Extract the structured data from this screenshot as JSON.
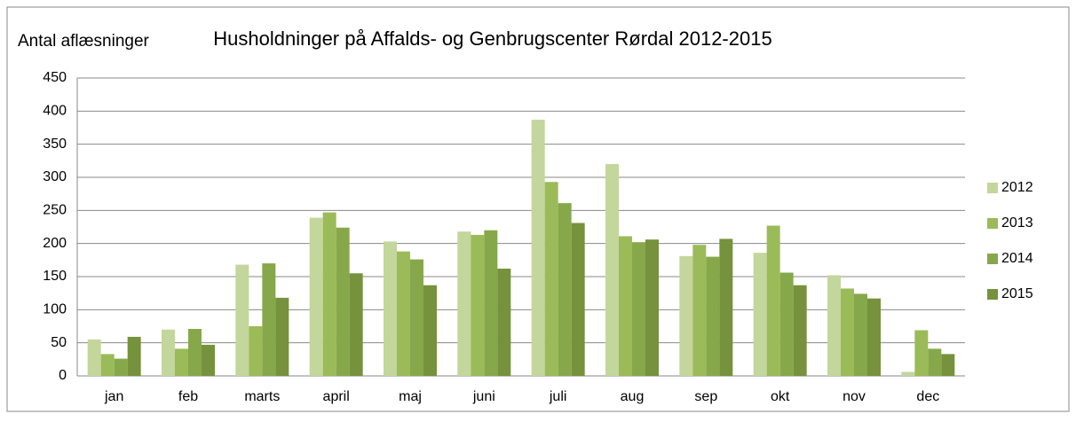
{
  "chart_data": {
    "type": "bar",
    "title": "Husholdninger på Affalds- og Genbrugscenter Rørdal 2012-2015",
    "y_label": "Antal aflæsninger",
    "categories": [
      "jan",
      "feb",
      "marts",
      "april",
      "maj",
      "juni",
      "juli",
      "aug",
      "sep",
      "okt",
      "nov",
      "dec"
    ],
    "series": [
      {
        "name": "2012",
        "color": "#c3d69b",
        "values": [
          55,
          70,
          168,
          239,
          203,
          218,
          387,
          320,
          181,
          186,
          152,
          6
        ]
      },
      {
        "name": "2013",
        "color": "#9bbb59",
        "values": [
          33,
          41,
          75,
          247,
          188,
          213,
          293,
          211,
          198,
          227,
          132,
          69
        ]
      },
      {
        "name": "2014",
        "color": "#86a84a",
        "values": [
          26,
          71,
          170,
          224,
          176,
          220,
          261,
          202,
          180,
          156,
          124,
          41
        ]
      },
      {
        "name": "2015",
        "color": "#76923c",
        "values": [
          59,
          47,
          118,
          155,
          137,
          162,
          231,
          206,
          207,
          137,
          117,
          33
        ]
      }
    ],
    "ylim": [
      0,
      450
    ],
    "yticks": [
      0,
      50,
      100,
      150,
      200,
      250,
      300,
      350,
      400,
      450
    ],
    "grid": true,
    "legend": "right"
  }
}
